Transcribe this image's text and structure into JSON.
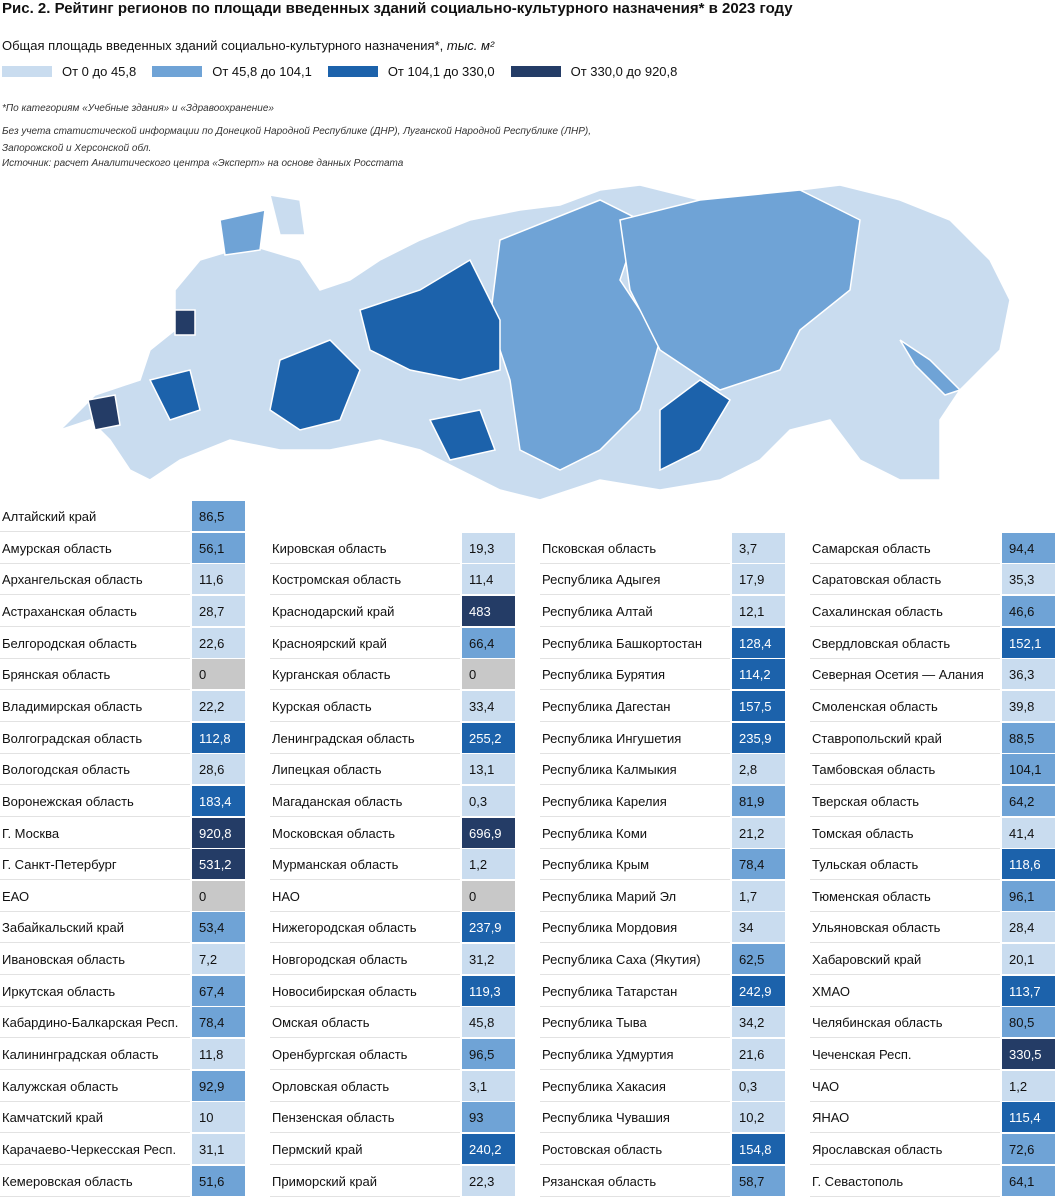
{
  "header": {
    "title": "Рис. 2. Рейтинг регионов по площади введенных зданий социально-культурного назначения* в 2023 году",
    "subtitle": "Общая площадь введенных зданий социально-культурного назначения*,",
    "unit": "тыс. м²"
  },
  "legend": [
    {
      "label": "От 0 до 45,8",
      "color": "#c9dcef"
    },
    {
      "label": "От 45,8 до 104,1",
      "color": "#6fa3d6"
    },
    {
      "label": "От 104,1 до 330,0",
      "color": "#1c62ab"
    },
    {
      "label": "От 330,0 до 920,8",
      "color": "#243c66"
    }
  ],
  "notes": {
    "footnote": "*По категориям «Учебные здания» и «Здравоохранение»",
    "exclusion": "Без учета статистической информации по Донецкой Народной Республике (ДНР), Луганской Народной Республике (ЛНР), Запорожской и Херсонской обл.",
    "source": "Источник: расчет Аналитического центра «Эксперт» на основе данных Росстата"
  },
  "table": {
    "columns": [
      [
        [
          "Алтайский край",
          "86,5",
          "#6fa3d6"
        ],
        [
          "Амурская область",
          "56,1",
          "#6fa3d6"
        ],
        [
          "Архангельская область",
          "11,6",
          "#c9dcef"
        ],
        [
          "Астраханская область",
          "28,7",
          "#c9dcef"
        ],
        [
          "Белгородская область",
          "22,6",
          "#c9dcef"
        ],
        [
          "Брянская область",
          "0",
          "#c8c8c8"
        ],
        [
          "Владимирская область",
          "22,2",
          "#c9dcef"
        ],
        [
          "Волгоградская область",
          "112,8",
          "#1c62ab"
        ],
        [
          "Вологодская область",
          "28,6",
          "#c9dcef"
        ],
        [
          "Воронежская область",
          "183,4",
          "#1c62ab"
        ],
        [
          "Г. Москва",
          "920,8",
          "#243c66"
        ],
        [
          "Г. Санкт-Петербург",
          "531,2",
          "#243c66"
        ],
        [
          "ЕАО",
          "0",
          "#c8c8c8"
        ],
        [
          "Забайкальский край",
          "53,4",
          "#6fa3d6"
        ],
        [
          "Ивановская область",
          "7,2",
          "#c9dcef"
        ],
        [
          "Иркутская область",
          "67,4",
          "#6fa3d6"
        ],
        [
          "Кабардино-Балкарская Респ.",
          "78,4",
          "#6fa3d6"
        ],
        [
          "Калининградская область",
          "11,8",
          "#c9dcef"
        ],
        [
          "Калужская область",
          "92,9",
          "#6fa3d6"
        ],
        [
          "Камчатский край",
          "10",
          "#c9dcef"
        ],
        [
          "Карачаево-Черкесская Респ.",
          "31,1",
          "#c9dcef"
        ],
        [
          "Кемеровская область",
          "51,6",
          "#6fa3d6"
        ]
      ],
      [
        [
          "Кировская область",
          "19,3",
          "#c9dcef"
        ],
        [
          "Костромская область",
          "11,4",
          "#c9dcef"
        ],
        [
          "Краснодарский край",
          "483",
          "#243c66"
        ],
        [
          "Красноярский край",
          "66,4",
          "#6fa3d6"
        ],
        [
          "Курганская область",
          "0",
          "#c8c8c8"
        ],
        [
          "Курская область",
          "33,4",
          "#c9dcef"
        ],
        [
          "Ленинградская область",
          "255,2",
          "#1c62ab"
        ],
        [
          "Липецкая область",
          "13,1",
          "#c9dcef"
        ],
        [
          "Магаданская область",
          "0,3",
          "#c9dcef"
        ],
        [
          "Московская область",
          "696,9",
          "#243c66"
        ],
        [
          "Мурманская область",
          "1,2",
          "#c9dcef"
        ],
        [
          "НАО",
          "0",
          "#c8c8c8"
        ],
        [
          "Нижегородская область",
          "237,9",
          "#1c62ab"
        ],
        [
          "Новгородская область",
          "31,2",
          "#c9dcef"
        ],
        [
          "Новосибирская область",
          "119,3",
          "#1c62ab"
        ],
        [
          "Омская область",
          "45,8",
          "#c9dcef"
        ],
        [
          "Оренбургская область",
          "96,5",
          "#6fa3d6"
        ],
        [
          "Орловская область",
          "3,1",
          "#c9dcef"
        ],
        [
          "Пензенская область",
          "93",
          "#6fa3d6"
        ],
        [
          "Пермский край",
          "240,2",
          "#1c62ab"
        ],
        [
          "Приморский край",
          "22,3",
          "#c9dcef"
        ]
      ],
      [
        [
          "Псковская область",
          "3,7",
          "#c9dcef"
        ],
        [
          "Республика Адыгея",
          "17,9",
          "#c9dcef"
        ],
        [
          "Республика Алтай",
          "12,1",
          "#c9dcef"
        ],
        [
          "Республика Башкортостан",
          "128,4",
          "#1c62ab"
        ],
        [
          "Республика Бурятия",
          "114,2",
          "#1c62ab"
        ],
        [
          "Республика Дагестан",
          "157,5",
          "#1c62ab"
        ],
        [
          "Республика Ингушетия",
          "235,9",
          "#1c62ab"
        ],
        [
          "Республика Калмыкия",
          "2,8",
          "#c9dcef"
        ],
        [
          "Республика Карелия",
          "81,9",
          "#6fa3d6"
        ],
        [
          "Республика Коми",
          "21,2",
          "#c9dcef"
        ],
        [
          "Республика Крым",
          "78,4",
          "#6fa3d6"
        ],
        [
          "Республика Марий Эл",
          "1,7",
          "#c9dcef"
        ],
        [
          "Республика Мордовия",
          "34",
          "#c9dcef"
        ],
        [
          "Республика Саха (Якутия)",
          "62,5",
          "#6fa3d6"
        ],
        [
          "Республика Татарстан",
          "242,9",
          "#1c62ab"
        ],
        [
          "Республика Тыва",
          "34,2",
          "#c9dcef"
        ],
        [
          "Республика Удмуртия",
          "21,6",
          "#c9dcef"
        ],
        [
          "Республика Хакасия",
          "0,3",
          "#c9dcef"
        ],
        [
          "Республика Чувашия",
          "10,2",
          "#c9dcef"
        ],
        [
          "Ростовская область",
          "154,8",
          "#1c62ab"
        ],
        [
          "Рязанская область",
          "58,7",
          "#6fa3d6"
        ]
      ],
      [
        [
          "Самарская область",
          "94,4",
          "#6fa3d6"
        ],
        [
          "Саратовская область",
          "35,3",
          "#c9dcef"
        ],
        [
          "Сахалинская область",
          "46,6",
          "#6fa3d6"
        ],
        [
          "Свердловская область",
          "152,1",
          "#1c62ab"
        ],
        [
          "Северная Осетия — Алания",
          "36,3",
          "#c9dcef"
        ],
        [
          "Смоленская область",
          "39,8",
          "#c9dcef"
        ],
        [
          "Ставропольский край",
          "88,5",
          "#6fa3d6"
        ],
        [
          "Тамбовская область",
          "104,1",
          "#6fa3d6"
        ],
        [
          "Тверская область",
          "64,2",
          "#6fa3d6"
        ],
        [
          "Томская область",
          "41,4",
          "#c9dcef"
        ],
        [
          "Тульская область",
          "118,6",
          "#1c62ab"
        ],
        [
          "Тюменская область",
          "96,1",
          "#6fa3d6"
        ],
        [
          "Ульяновская область",
          "28,4",
          "#c9dcef"
        ],
        [
          "Хабаровский край",
          "20,1",
          "#c9dcef"
        ],
        [
          "ХМАО",
          "113,7",
          "#1c62ab"
        ],
        [
          "Челябинская область",
          "80,5",
          "#6fa3d6"
        ],
        [
          "Чеченская Респ.",
          "330,5",
          "#243c66"
        ],
        [
          "ЧАО",
          "1,2",
          "#c9dcef"
        ],
        [
          "ЯНАО",
          "115,4",
          "#1c62ab"
        ],
        [
          "Ярославская область",
          "72,6",
          "#6fa3d6"
        ],
        [
          "Г. Севастополь",
          "64,1",
          "#6fa3d6"
        ]
      ]
    ]
  }
}
